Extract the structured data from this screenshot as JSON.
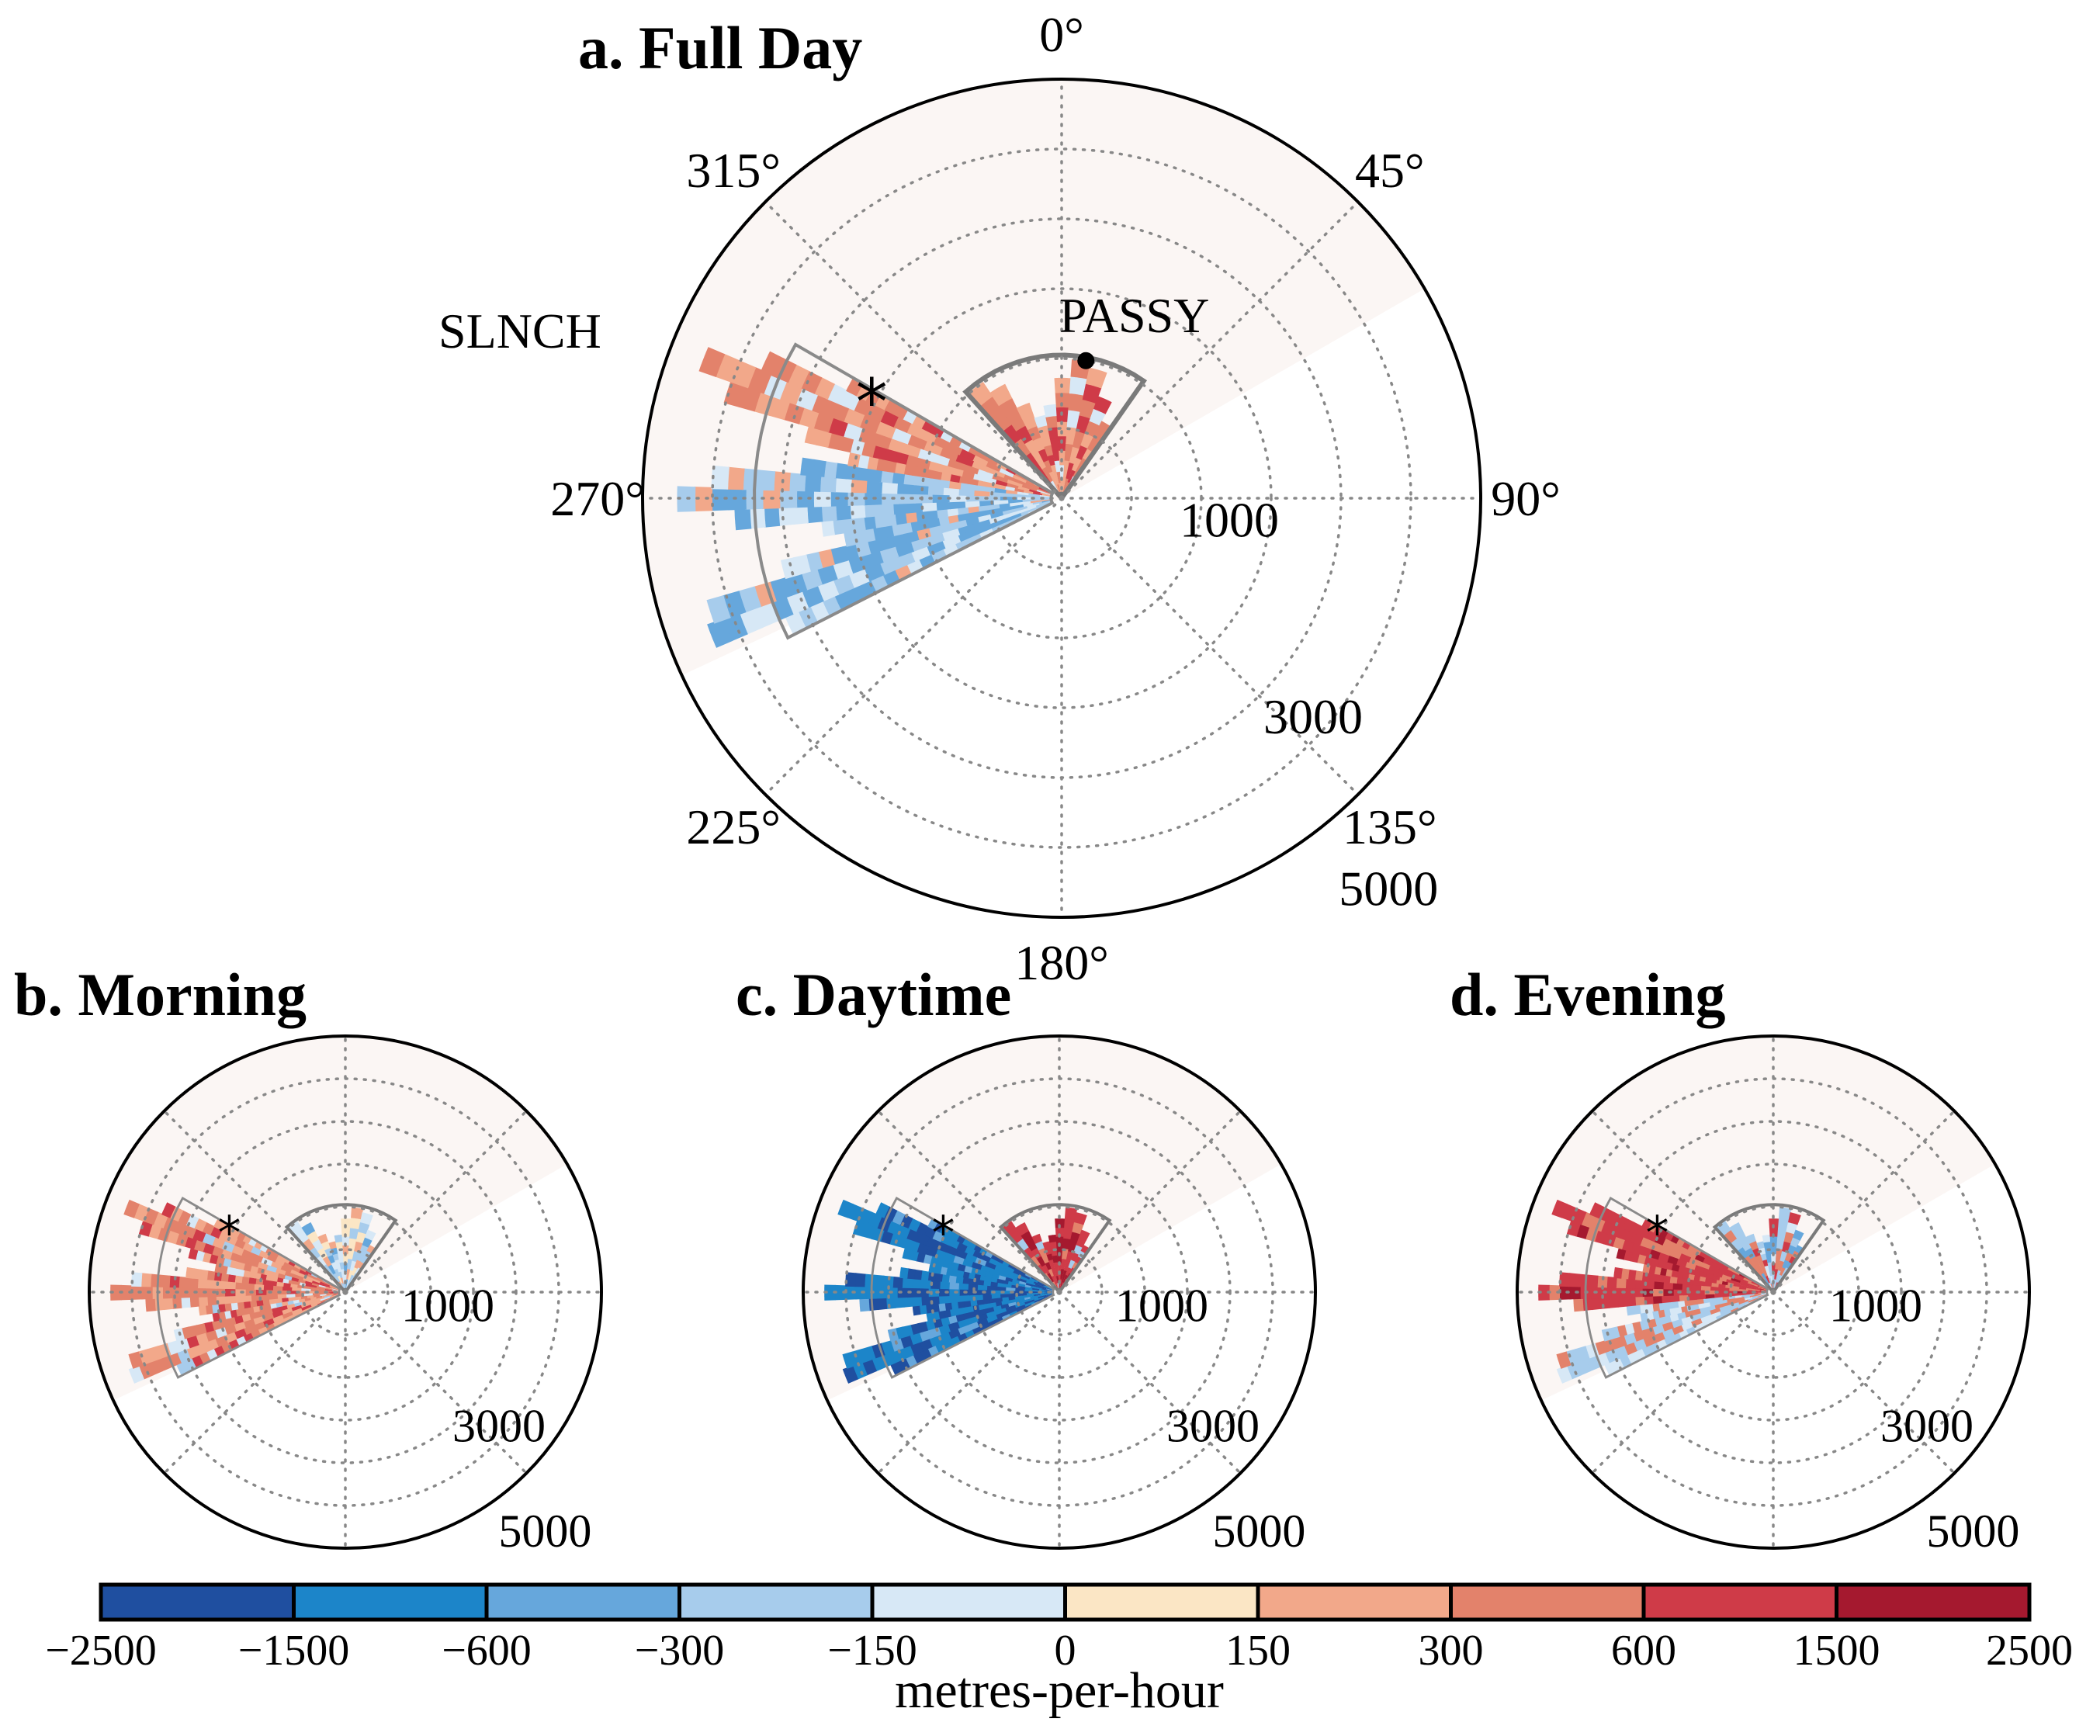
{
  "panels": [
    {
      "id": "a",
      "title": "a. Full Day"
    },
    {
      "id": "b",
      "title": "b. Morning"
    },
    {
      "id": "c",
      "title": "c. Daytime"
    },
    {
      "id": "d",
      "title": "d. Evening"
    }
  ],
  "labels": {
    "site_left": "SLNCH",
    "site_right": "PASSY"
  },
  "colorbar": {
    "label": "metres-per-hour"
  },
  "colors": {
    "neg_2500_1500": "#1f4fa0",
    "neg_1500_600": "#1c85c9",
    "neg_600_300": "#66a7dc",
    "neg_300_150": "#a7ccec",
    "neg_150_0": "#d7e8f6",
    "pos_0_150": "#fbe6c5",
    "pos_150_300": "#f2a88a",
    "pos_300_600": "#e3826b",
    "pos_600_1500": "#cf3b48",
    "pos_1500_2500": "#a5192f",
    "sector_shade": "#fbf6f4"
  },
  "chart_data": {
    "type": "polar",
    "angle_ticks": [
      "0°",
      "45°",
      "90°",
      "135°",
      "180°",
      "225°",
      "270°",
      "315°"
    ],
    "radial_ticks": [
      "1000",
      "3000",
      "5000"
    ],
    "radial_range": [
      0,
      6000
    ],
    "colorbar_ticks": [
      "−2500",
      "−1500",
      "−600",
      "−300",
      "−150",
      "0",
      "150",
      "300",
      "600",
      "1500",
      "2500"
    ],
    "colorbar_bounds": [
      -2500,
      -1500,
      -600,
      -300,
      -150,
      0,
      150,
      300,
      600,
      1500,
      2500
    ],
    "scan_sector_deg": [
      245,
      330
    ],
    "markers": [
      {
        "name": "SLNCH",
        "symbol": "*",
        "azimuth_deg": 295,
        "range_m": 3000
      },
      {
        "name": "PASSY",
        "symbol": "dot",
        "azimuth_deg": 10,
        "range_m": 2000
      }
    ],
    "dominant_flow": [
      {
        "panel": "a",
        "slnch_sector": "mixed (+ north edge, − south)",
        "passy_sector": "positive"
      },
      {
        "panel": "b",
        "slnch_sector": "mostly positive",
        "passy_sector": "mixed"
      },
      {
        "panel": "c",
        "slnch_sector": "strongly negative",
        "passy_sector": "positive"
      },
      {
        "panel": "d",
        "slnch_sector": "strongly positive",
        "passy_sector": "mixed"
      }
    ]
  }
}
